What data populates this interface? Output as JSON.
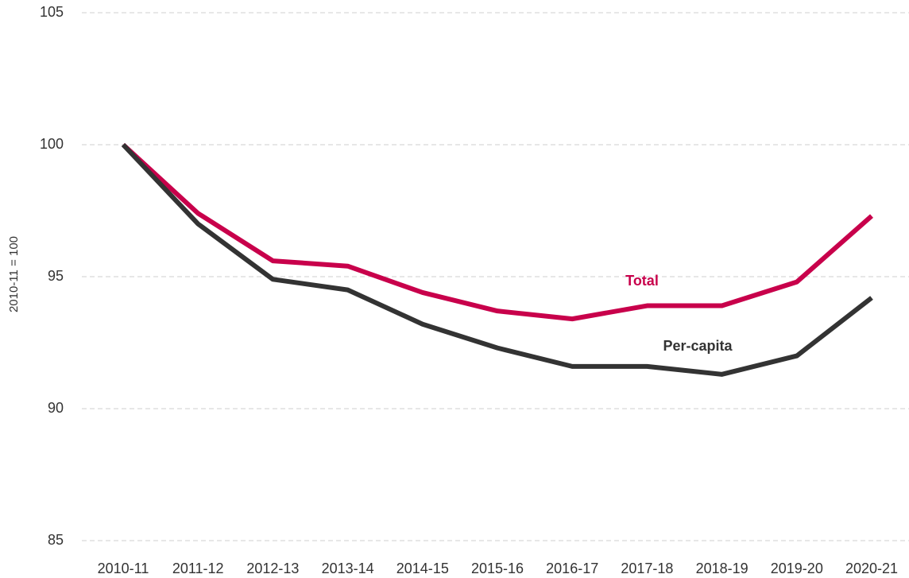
{
  "chart_data": {
    "type": "line",
    "y_label": "2010-11 = 100",
    "categories": [
      "2010-11",
      "2011-12",
      "2012-13",
      "2013-14",
      "2014-15",
      "2015-16",
      "2016-17",
      "2017-18",
      "2018-19",
      "2019-20",
      "2020-21"
    ],
    "series": [
      {
        "name": "Total",
        "color": "#c8004b",
        "values": [
          100,
          97.4,
          95.6,
          95.4,
          94.4,
          93.7,
          93.4,
          93.9,
          93.9,
          94.8,
          97.3
        ]
      },
      {
        "name": "Per-capita",
        "color": "#333333",
        "values": [
          100,
          97.0,
          94.9,
          94.5,
          93.2,
          92.3,
          91.6,
          91.6,
          91.3,
          92.0,
          94.2
        ]
      }
    ],
    "ylim": [
      85,
      105
    ],
    "yticks": [
      85,
      90,
      95,
      100,
      105
    ],
    "grid": true
  }
}
